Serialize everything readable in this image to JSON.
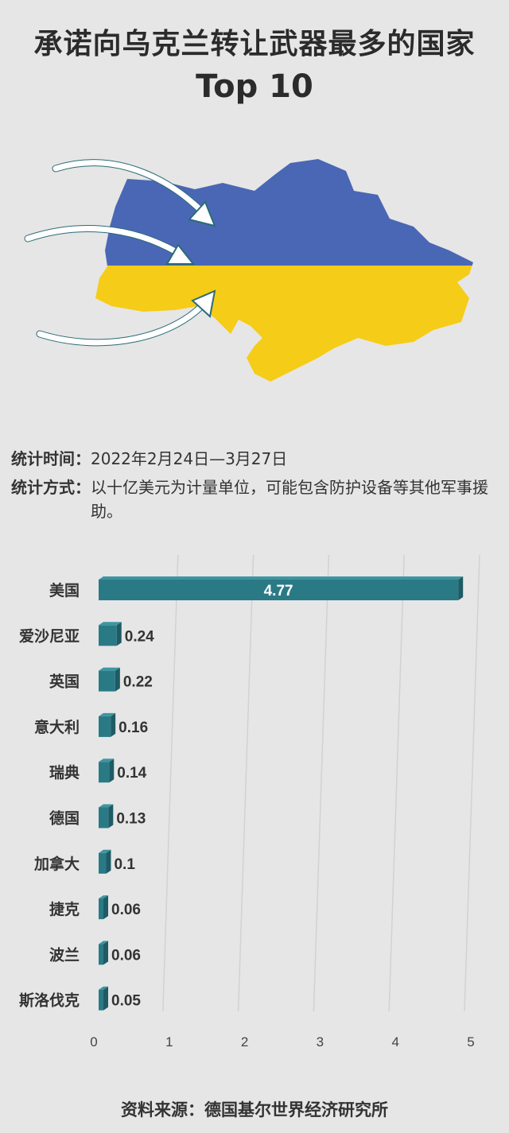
{
  "title": "承诺向乌克兰转让武器最多的国家",
  "subtitle": "Top 10",
  "info": {
    "time_label": "统计时间：",
    "time_value": "2022年2月24日—3月27日",
    "method_label": "统计方式：",
    "method_value": "以十亿美元为计量单位，可能包含防护设备等其他军事援助。"
  },
  "colors": {
    "bar": "#2a7a86",
    "bar_side": "#1e5b64",
    "flag_blue": "#4a67b5",
    "flag_yellow": "#f5cc18",
    "background": "#e6e6e6"
  },
  "chart_data": {
    "type": "bar",
    "orientation": "horizontal",
    "categories": [
      "美国",
      "爱沙尼亚",
      "英国",
      "意大利",
      "瑞典",
      "德国",
      "加拿大",
      "捷克",
      "波兰",
      "斯洛伐克"
    ],
    "values": [
      4.77,
      0.24,
      0.22,
      0.16,
      0.14,
      0.13,
      0.1,
      0.06,
      0.06,
      0.05
    ],
    "value_labels": [
      "4.77",
      "0.24",
      "0.22",
      "0.16",
      "0.14",
      "0.13",
      "0.1",
      "0.06",
      "0.06",
      "0.05"
    ],
    "xlim": [
      0,
      5
    ],
    "x_ticks": [
      "0",
      "1",
      "2",
      "3",
      "4",
      "5"
    ],
    "grid": true
  },
  "source": "资料来源：德国基尔世界经济研究所"
}
